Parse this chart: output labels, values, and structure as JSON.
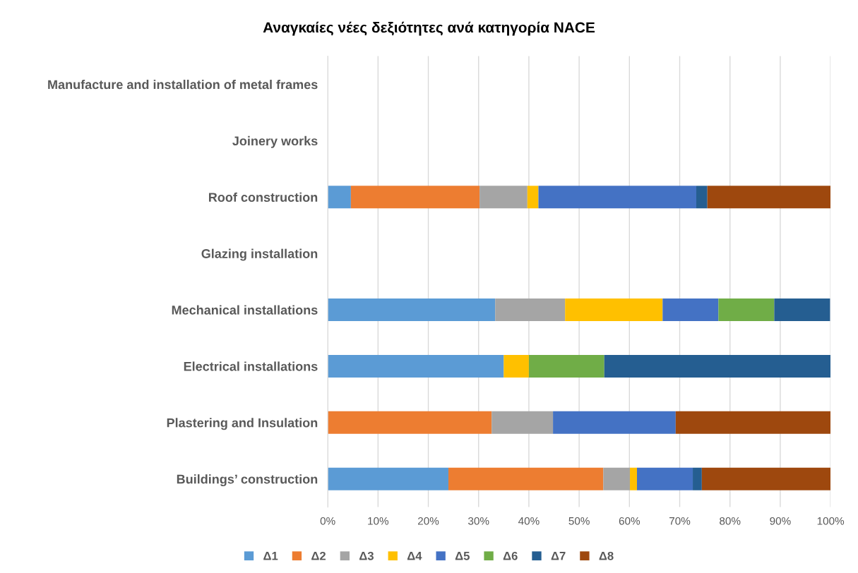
{
  "chart_data": {
    "type": "bar",
    "orientation": "horizontal",
    "stacked": true,
    "title": "Αναγκαίες νέες δεξιότητες ανά κατηγορία NACE",
    "categories": [
      "Manufacture and installation of metal frames",
      "Joinery works",
      "Roof construction",
      "Glazing installation",
      "Mechanical installations",
      "Electrical installations",
      "Plastering and Insulation",
      "Buildings’ construction"
    ],
    "series": [
      {
        "name": "Δ1",
        "color": "#5b9bd5",
        "values": [
          null,
          null,
          4.6,
          null,
          33.3,
          35,
          0,
          24.0
        ]
      },
      {
        "name": "Δ2",
        "color": "#ed7d31",
        "values": [
          null,
          null,
          25.6,
          null,
          0,
          0,
          32.6,
          30.8
        ]
      },
      {
        "name": "Δ3",
        "color": "#a5a5a5",
        "values": [
          null,
          null,
          9.5,
          null,
          13.9,
          0,
          12.2,
          5.3
        ]
      },
      {
        "name": "Δ4",
        "color": "#ffc000",
        "values": [
          null,
          null,
          2.2,
          null,
          19.4,
          5,
          0,
          1.4
        ]
      },
      {
        "name": "Δ5",
        "color": "#4472c4",
        "values": [
          null,
          null,
          31.4,
          null,
          11.1,
          0,
          24.4,
          11.1
        ]
      },
      {
        "name": "Δ6",
        "color": "#70ad47",
        "values": [
          null,
          null,
          0,
          null,
          11.1,
          15,
          0,
          0
        ]
      },
      {
        "name": "Δ7",
        "color": "#255e91",
        "values": [
          null,
          null,
          2.2,
          null,
          11.1,
          45,
          0,
          1.8
        ]
      },
      {
        "name": "Δ8",
        "color": "#9e480e",
        "values": [
          null,
          null,
          24.5,
          null,
          0,
          0,
          30.8,
          25.6
        ]
      }
    ],
    "xlim": [
      0,
      100
    ],
    "xticks": [
      {
        "value": 0,
        "label": "0%"
      },
      {
        "value": 10,
        "label": "10%"
      },
      {
        "value": 20,
        "label": "20%"
      },
      {
        "value": 30,
        "label": "30%"
      },
      {
        "value": 40,
        "label": "40%"
      },
      {
        "value": 50,
        "label": "50%"
      },
      {
        "value": 60,
        "label": "60%"
      },
      {
        "value": 70,
        "label": "70%"
      },
      {
        "value": 80,
        "label": "80%"
      },
      {
        "value": 90,
        "label": "90%"
      },
      {
        "value": 100,
        "label": "100%"
      }
    ],
    "grid": "x",
    "legend": "bottom"
  }
}
